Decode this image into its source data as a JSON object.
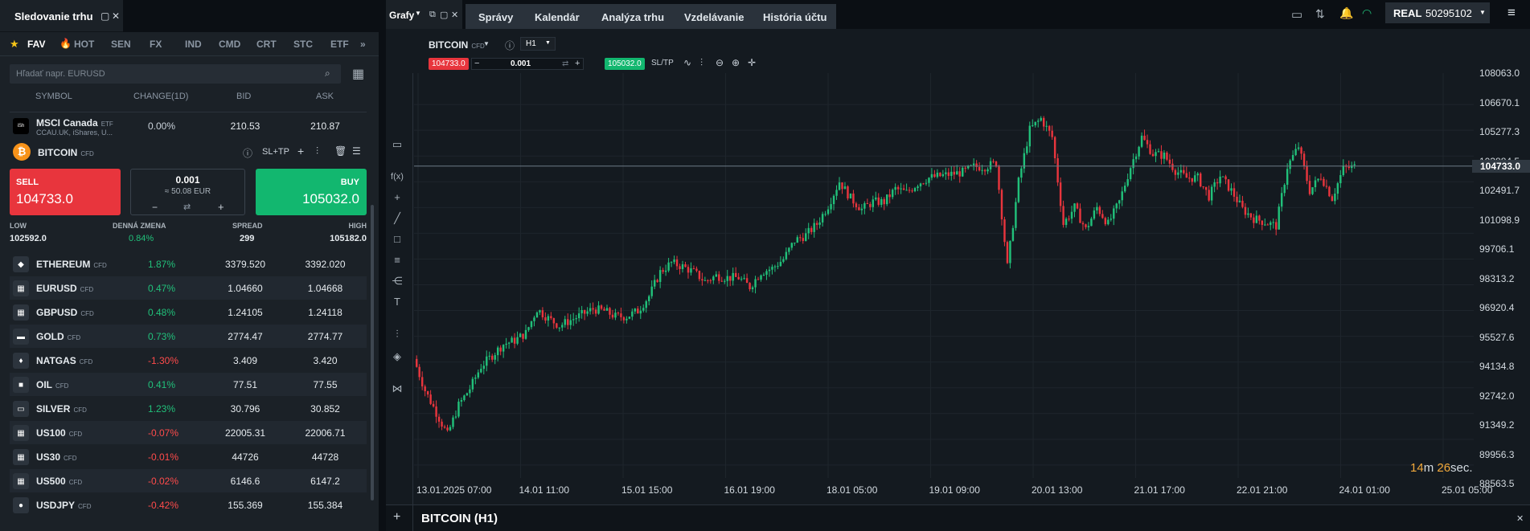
{
  "watchlist": {
    "title": "Sledovanie trhu",
    "tabs": [
      "FAV",
      "HOT",
      "SEN",
      "FX",
      "IND",
      "CMD",
      "CRT",
      "STC",
      "ETF"
    ],
    "search_placeholder": "Hľadať napr. EURUSD",
    "columns": {
      "symbol": "SYMBOL",
      "change": "CHANGE(1D)",
      "bid": "BID",
      "ask": "ASK"
    },
    "pinned": {
      "name": "MSCI Canada",
      "tag": "ETF",
      "sub": "CCAU.UK, iShares, U...",
      "change": "0.00%",
      "bid": "210.53",
      "ask": "210.87"
    },
    "selected": {
      "name": "BITCOIN",
      "tag": "CFD",
      "sltp": "SL+TP",
      "sell_label": "SELL",
      "sell_price": "104733.0",
      "buy_label": "BUY",
      "buy_price": "105032.0",
      "volume": "0.001",
      "volume_eur": "≈ 50.08 EUR",
      "stats": {
        "low_label": "LOW",
        "low": "102592.0",
        "change_label": "DENNÁ ZMENA",
        "change": "0.84%",
        "spread_label": "SPREAD",
        "spread": "299",
        "high_label": "HIGH",
        "high": "105182.0"
      }
    },
    "rows": [
      {
        "name": "ETHEREUM",
        "tag": "CFD",
        "change": "1.87%",
        "bid": "3379.520",
        "ask": "3392.020",
        "dir": "pos",
        "icon": "◆"
      },
      {
        "name": "EURUSD",
        "tag": "CFD",
        "change": "0.47%",
        "bid": "1.04660",
        "ask": "1.04668",
        "dir": "pos",
        "icon": "▦"
      },
      {
        "name": "GBPUSD",
        "tag": "CFD",
        "change": "0.48%",
        "bid": "1.24105",
        "ask": "1.24118",
        "dir": "pos",
        "icon": "▦"
      },
      {
        "name": "GOLD",
        "tag": "CFD",
        "change": "0.73%",
        "bid": "2774.47",
        "ask": "2774.77",
        "dir": "pos",
        "icon": "▬"
      },
      {
        "name": "NATGAS",
        "tag": "CFD",
        "change": "-1.30%",
        "bid": "3.409",
        "ask": "3.420",
        "dir": "neg",
        "icon": "♦"
      },
      {
        "name": "OIL",
        "tag": "CFD",
        "change": "0.41%",
        "bid": "77.51",
        "ask": "77.55",
        "dir": "pos",
        "icon": "■"
      },
      {
        "name": "SILVER",
        "tag": "CFD",
        "change": "1.23%",
        "bid": "30.796",
        "ask": "30.852",
        "dir": "pos",
        "icon": "▭"
      },
      {
        "name": "US100",
        "tag": "CFD",
        "change": "-0.07%",
        "bid": "22005.31",
        "ask": "22006.71",
        "dir": "neg",
        "icon": "▦"
      },
      {
        "name": "US30",
        "tag": "CFD",
        "change": "-0.01%",
        "bid": "44726",
        "ask": "44728",
        "dir": "neg",
        "icon": "▦"
      },
      {
        "name": "US500",
        "tag": "CFD",
        "change": "-0.02%",
        "bid": "6146.6",
        "ask": "6147.2",
        "dir": "neg",
        "icon": "▦"
      },
      {
        "name": "USDJPY",
        "tag": "CFD",
        "change": "-0.42%",
        "bid": "155.369",
        "ask": "155.384",
        "dir": "neg",
        "icon": "●"
      }
    ]
  },
  "topbar": {
    "charts_label": "Grafy",
    "menu": [
      "Správy",
      "Kalendár",
      "Analýza trhu",
      "Vzdelávanie",
      "História účtu"
    ],
    "account_type": "REAL",
    "account_id": "50295102"
  },
  "chart": {
    "symbol": "BITCOIN",
    "tag": "CFD",
    "timeframe": "H1",
    "sell_price": "104733.0",
    "buy_price": "105032.0",
    "volume": "0.001",
    "sltp": "SL/TP",
    "current_price": "104733.0",
    "bottom_title": "BITCOIN (H1)",
    "timer": {
      "m": "14",
      "m_unit": "m",
      "s": "26",
      "s_unit": "sec."
    }
  },
  "chart_data": {
    "type": "line",
    "title": "",
    "y_ticks": [
      "108063.0",
      "106670.1",
      "105277.3",
      "103884.5",
      "102491.7",
      "101098.9",
      "99706.1",
      "98313.2",
      "96920.4",
      "95527.6",
      "94134.8",
      "92742.0",
      "91349.2",
      "89956.3",
      "88563.5"
    ],
    "x_ticks": [
      "13.01.2025 07:00",
      "14.01 11:00",
      "15.01 15:00",
      "16.01 19:00",
      "18.01 05:00",
      "19.01 09:00",
      "20.01 13:00",
      "21.01 17:00",
      "22.01 21:00",
      "24.01 01:00",
      "25.01 05:00"
    ],
    "ylim": [
      88563.5,
      108063.0
    ],
    "series": [
      {
        "values": [
          94300,
          92600,
          91400,
          90200,
          91800,
          92700,
          93900,
          94500,
          95100,
          95300,
          95700,
          97000,
          96500,
          96100,
          96400,
          96700,
          97000,
          96900,
          96600,
          96600,
          96900,
          97700,
          99000,
          99500,
          99300,
          99000,
          98500,
          98800,
          98700,
          98700,
          98200,
          99000,
          99200,
          99700,
          100700,
          101000,
          101600,
          102600,
          103900,
          103000,
          102400,
          102800,
          102800,
          103500,
          103300,
          103800,
          104100,
          104200,
          104300,
          104400,
          104700,
          104700,
          104900,
          99300,
          103900,
          106700,
          107300,
          106300,
          101600,
          102500,
          101300,
          102500,
          101600,
          102800,
          104700,
          106300,
          105400,
          105300,
          104500,
          104100,
          104100,
          103100,
          104200,
          103400,
          102400,
          101900,
          101700,
          101500,
          104700,
          105800,
          103400,
          104200,
          103000,
          104600,
          104700
        ]
      }
    ]
  }
}
